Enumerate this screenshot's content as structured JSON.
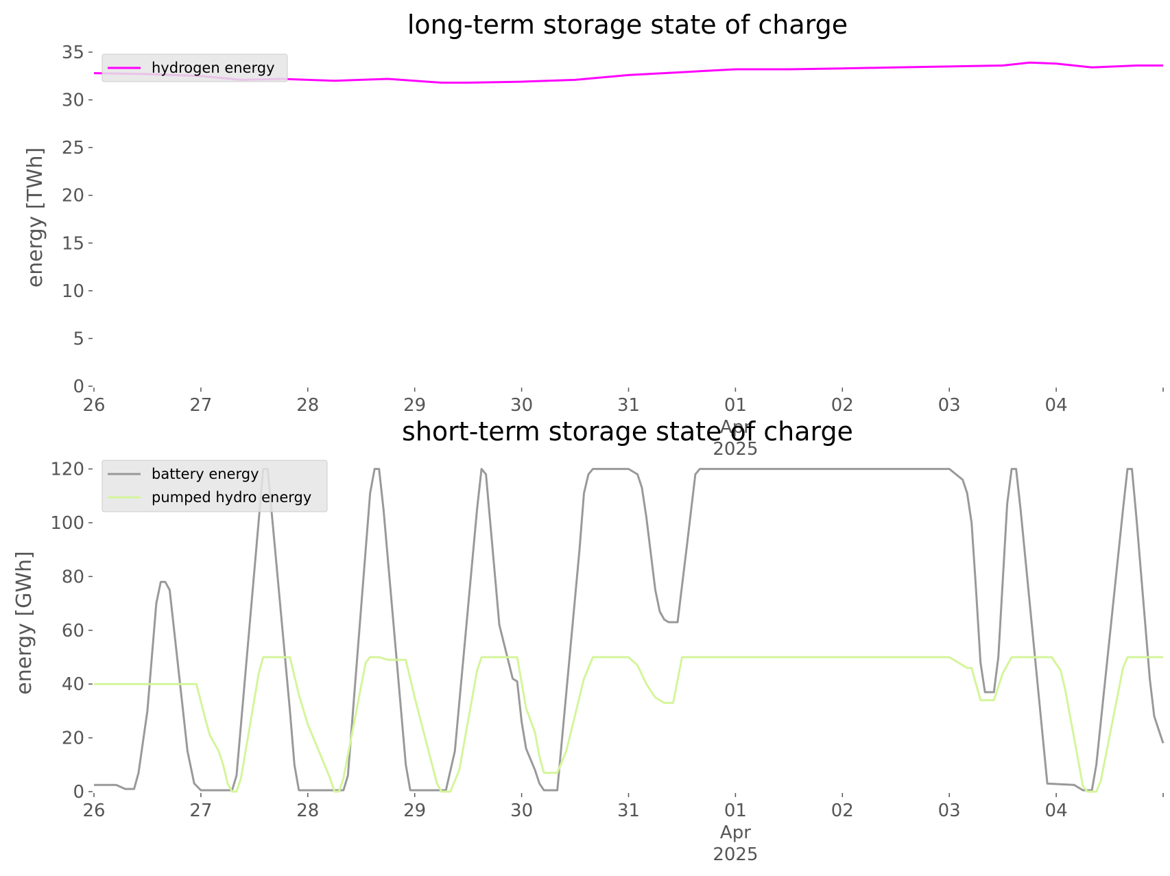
{
  "chart_data": [
    {
      "type": "line",
      "title": "long-term storage state of charge",
      "ylabel": "energy [TWh]",
      "ylim": [
        0,
        35
      ],
      "yticks": [
        "0",
        "5",
        "10",
        "15",
        "20",
        "25",
        "30",
        "35"
      ],
      "xlim": [
        "2025-03-26",
        "2025-04-05"
      ],
      "xticks": [
        "26",
        "27",
        "28",
        "29",
        "30",
        "31",
        "01",
        "02",
        "03",
        "04"
      ],
      "xtick_sub": [
        "Apr",
        "2025"
      ],
      "grid": false,
      "legend": "top-left",
      "series": [
        {
          "name": "hydrogen energy",
          "color": "#ff00ff",
          "points": [
            [
              "2025-03-26 00:00",
              32.8
            ],
            [
              "2025-03-26 12:00",
              32.7
            ],
            [
              "2025-03-27 00:00",
              32.5
            ],
            [
              "2025-03-27 09:00",
              32.1
            ],
            [
              "2025-03-27 18:00",
              32.2
            ],
            [
              "2025-03-28 06:00",
              32.0
            ],
            [
              "2025-03-28 18:00",
              32.2
            ],
            [
              "2025-03-29 06:00",
              31.8
            ],
            [
              "2025-03-29 12:00",
              31.8
            ],
            [
              "2025-03-30 00:00",
              31.9
            ],
            [
              "2025-03-30 12:00",
              32.1
            ],
            [
              "2025-03-31 00:00",
              32.6
            ],
            [
              "2025-03-31 12:00",
              32.9
            ],
            [
              "2025-04-01 00:00",
              33.2
            ],
            [
              "2025-04-01 12:00",
              33.2
            ],
            [
              "2025-04-02 00:00",
              33.3
            ],
            [
              "2025-04-02 12:00",
              33.4
            ],
            [
              "2025-04-03 00:00",
              33.5
            ],
            [
              "2025-04-03 12:00",
              33.6
            ],
            [
              "2025-04-03 18:00",
              33.9
            ],
            [
              "2025-04-04 00:00",
              33.8
            ],
            [
              "2025-04-04 08:00",
              33.4
            ],
            [
              "2025-04-04 18:00",
              33.6
            ],
            [
              "2025-04-05 00:00",
              33.6
            ]
          ]
        }
      ]
    },
    {
      "type": "line",
      "title": "short-term storage state of charge",
      "ylabel": "energy [GWh]",
      "ylim": [
        0,
        125
      ],
      "yticks": [
        "0",
        "20",
        "40",
        "60",
        "80",
        "100",
        "120"
      ],
      "xlim": [
        "2025-03-26",
        "2025-04-05"
      ],
      "xticks": [
        "26",
        "27",
        "28",
        "29",
        "30",
        "31",
        "01",
        "02",
        "03",
        "04"
      ],
      "xtick_sub": [
        "Apr",
        "2025"
      ],
      "grid": false,
      "legend": "top-left",
      "series": [
        {
          "name": "battery energy",
          "color": "#999999",
          "points": [
            [
              "2025-03-26 00:00",
              2.5
            ],
            [
              "2025-03-26 05:00",
              2.5
            ],
            [
              "2025-03-26 07:00",
              1.0
            ],
            [
              "2025-03-26 09:00",
              1.0
            ],
            [
              "2025-03-26 10:00",
              7
            ],
            [
              "2025-03-26 12:00",
              30
            ],
            [
              "2025-03-26 14:00",
              70
            ],
            [
              "2025-03-26 15:00",
              78
            ],
            [
              "2025-03-26 16:00",
              78
            ],
            [
              "2025-03-26 17:00",
              75
            ],
            [
              "2025-03-26 19:00",
              45
            ],
            [
              "2025-03-26 21:00",
              15
            ],
            [
              "2025-03-26 22:30",
              3
            ],
            [
              "2025-03-27 00:00",
              0.5
            ],
            [
              "2025-03-27 07:00",
              0.5
            ],
            [
              "2025-03-27 08:00",
              6
            ],
            [
              "2025-03-27 14:00",
              120
            ],
            [
              "2025-03-27 15:00",
              120
            ],
            [
              "2025-03-27 20:00",
              30
            ],
            [
              "2025-03-27 21:00",
              10
            ],
            [
              "2025-03-27 22:00",
              0.5
            ],
            [
              "2025-03-28 08:00",
              0.5
            ],
            [
              "2025-03-28 09:00",
              6
            ],
            [
              "2025-03-28 14:00",
              111
            ],
            [
              "2025-03-28 15:00",
              120
            ],
            [
              "2025-03-28 16:00",
              120
            ],
            [
              "2025-03-28 17:00",
              105
            ],
            [
              "2025-03-28 22:00",
              10
            ],
            [
              "2025-03-28 23:00",
              0.5
            ],
            [
              "2025-03-29 07:00",
              0.5
            ],
            [
              "2025-03-29 09:00",
              15
            ],
            [
              "2025-03-29 14:00",
              105
            ],
            [
              "2025-03-29 15:00",
              120
            ],
            [
              "2025-03-29 16:00",
              118
            ],
            [
              "2025-03-29 19:00",
              62
            ],
            [
              "2025-03-29 22:00",
              42
            ],
            [
              "2025-03-29 23:00",
              41
            ],
            [
              "2025-03-30 00:00",
              26
            ],
            [
              "2025-03-30 01:00",
              16
            ],
            [
              "2025-03-30 03:00",
              8
            ],
            [
              "2025-03-30 04:00",
              3
            ],
            [
              "2025-03-30 05:00",
              0.5
            ],
            [
              "2025-03-30 08:00",
              0.5
            ],
            [
              "2025-03-30 13:00",
              90
            ],
            [
              "2025-03-30 14:00",
              111
            ],
            [
              "2025-03-30 15:00",
              118
            ],
            [
              "2025-03-30 16:00",
              120
            ],
            [
              "2025-03-31 00:00",
              120
            ],
            [
              "2025-03-31 02:00",
              118
            ],
            [
              "2025-03-31 03:00",
              113
            ],
            [
              "2025-03-31 04:00",
              102
            ],
            [
              "2025-03-31 06:00",
              75
            ],
            [
              "2025-03-31 07:00",
              67
            ],
            [
              "2025-03-31 08:00",
              64
            ],
            [
              "2025-03-31 09:00",
              63
            ],
            [
              "2025-03-31 11:00",
              63
            ],
            [
              "2025-03-31 13:00",
              90
            ],
            [
              "2025-03-31 15:00",
              118
            ],
            [
              "2025-03-31 16:00",
              120
            ],
            [
              "2025-04-03 00:00",
              120
            ],
            [
              "2025-04-03 03:00",
              116
            ],
            [
              "2025-04-03 04:00",
              111
            ],
            [
              "2025-04-03 05:00",
              100
            ],
            [
              "2025-04-03 06:00",
              75
            ],
            [
              "2025-04-03 07:00",
              48
            ],
            [
              "2025-04-03 08:00",
              37
            ],
            [
              "2025-04-03 10:00",
              37
            ],
            [
              "2025-04-03 11:00",
              50
            ],
            [
              "2025-04-03 13:00",
              107
            ],
            [
              "2025-04-03 14:00",
              120
            ],
            [
              "2025-04-03 15:00",
              120
            ],
            [
              "2025-04-03 16:00",
              105
            ],
            [
              "2025-04-03 21:00",
              20
            ],
            [
              "2025-04-03 22:00",
              3
            ],
            [
              "2025-04-04 04:00",
              2.5
            ],
            [
              "2025-04-04 06:00",
              0.5
            ],
            [
              "2025-04-04 08:00",
              0.5
            ],
            [
              "2025-04-04 09:00",
              10
            ],
            [
              "2025-04-04 15:00",
              105
            ],
            [
              "2025-04-04 16:00",
              120
            ],
            [
              "2025-04-04 17:00",
              120
            ],
            [
              "2025-04-04 18:00",
              102
            ],
            [
              "2025-04-04 21:00",
              42
            ],
            [
              "2025-04-04 22:00",
              28
            ],
            [
              "2025-04-05 00:00",
              18
            ]
          ]
        },
        {
          "name": "pumped hydro energy",
          "color": "#d4f59a",
          "points": [
            [
              "2025-03-26 00:00",
              40
            ],
            [
              "2025-03-26 23:00",
              40
            ],
            [
              "2025-03-27 01:00",
              27
            ],
            [
              "2025-03-27 02:00",
              21
            ],
            [
              "2025-03-27 03:00",
              18
            ],
            [
              "2025-03-27 04:00",
              15
            ],
            [
              "2025-03-27 05:00",
              10
            ],
            [
              "2025-03-27 06:00",
              3
            ],
            [
              "2025-03-27 07:00",
              0
            ],
            [
              "2025-03-27 08:00",
              0
            ],
            [
              "2025-03-27 09:00",
              5
            ],
            [
              "2025-03-27 13:00",
              44
            ],
            [
              "2025-03-27 14:00",
              50
            ],
            [
              "2025-03-27 20:00",
              50
            ],
            [
              "2025-03-27 22:00",
              36
            ],
            [
              "2025-03-28 00:00",
              25
            ],
            [
              "2025-03-28 05:00",
              5
            ],
            [
              "2025-03-28 06:00",
              0
            ],
            [
              "2025-03-28 07:00",
              0
            ],
            [
              "2025-03-28 08:00",
              5
            ],
            [
              "2025-03-28 13:00",
              48
            ],
            [
              "2025-03-28 14:00",
              50
            ],
            [
              "2025-03-28 16:00",
              50
            ],
            [
              "2025-03-28 18:00",
              49
            ],
            [
              "2025-03-28 22:00",
              49
            ],
            [
              "2025-03-29 00:00",
              35
            ],
            [
              "2025-03-29 05:00",
              3
            ],
            [
              "2025-03-29 06:00",
              0
            ],
            [
              "2025-03-29 08:00",
              0
            ],
            [
              "2025-03-29 10:00",
              8
            ],
            [
              "2025-03-29 14:00",
              45
            ],
            [
              "2025-03-29 15:00",
              50
            ],
            [
              "2025-03-29 23:00",
              50
            ],
            [
              "2025-03-30 01:00",
              31
            ],
            [
              "2025-03-30 03:00",
              22
            ],
            [
              "2025-03-30 04:00",
              13
            ],
            [
              "2025-03-30 05:00",
              7
            ],
            [
              "2025-03-30 08:00",
              7
            ],
            [
              "2025-03-30 10:00",
              15
            ],
            [
              "2025-03-30 14:00",
              42
            ],
            [
              "2025-03-30 16:00",
              50
            ],
            [
              "2025-03-31 00:00",
              50
            ],
            [
              "2025-03-31 02:00",
              47
            ],
            [
              "2025-03-31 04:00",
              40
            ],
            [
              "2025-03-31 06:00",
              35
            ],
            [
              "2025-03-31 08:00",
              33
            ],
            [
              "2025-03-31 10:00",
              33
            ],
            [
              "2025-03-31 12:00",
              50
            ],
            [
              "2025-04-03 00:00",
              50
            ],
            [
              "2025-04-03 02:00",
              48
            ],
            [
              "2025-04-03 04:00",
              46
            ],
            [
              "2025-04-03 05:00",
              46
            ],
            [
              "2025-04-03 07:00",
              34
            ],
            [
              "2025-04-03 10:00",
              34
            ],
            [
              "2025-04-03 12:00",
              44
            ],
            [
              "2025-04-03 14:00",
              50
            ],
            [
              "2025-04-03 23:00",
              50
            ],
            [
              "2025-04-04 01:00",
              45
            ],
            [
              "2025-04-04 02:00",
              38
            ],
            [
              "2025-04-04 04:00",
              20
            ],
            [
              "2025-04-04 06:00",
              2
            ],
            [
              "2025-04-04 07:00",
              0
            ],
            [
              "2025-04-04 09:00",
              0
            ],
            [
              "2025-04-04 10:00",
              4
            ],
            [
              "2025-04-04 15:00",
              46
            ],
            [
              "2025-04-04 16:00",
              50
            ],
            [
              "2025-04-05 00:00",
              50
            ]
          ]
        }
      ]
    }
  ]
}
